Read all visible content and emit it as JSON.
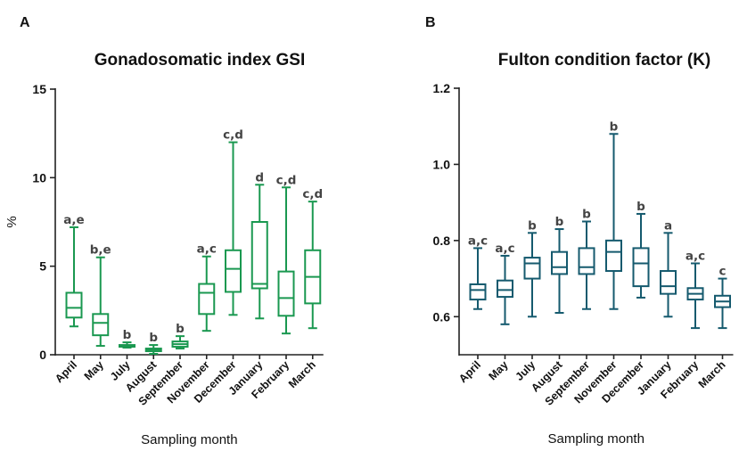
{
  "panels": {
    "left_letter": "A",
    "right_letter": "B"
  },
  "chart_data": [
    {
      "type": "box",
      "title": "Gonadosomatic index GSI",
      "xlabel": "Sampling month",
      "ylabel": "%",
      "ylim": [
        0,
        15
      ],
      "yticks": [
        0,
        5,
        10,
        15
      ],
      "ytick_labels": [
        "0",
        "5",
        "10",
        "15"
      ],
      "color": "#1a9850",
      "categories": [
        "April",
        "May",
        "July",
        "August",
        "September",
        "November",
        "December",
        "January",
        "February",
        "March"
      ],
      "boxes": [
        {
          "min": 1.6,
          "q1": 2.1,
          "median": 2.65,
          "q3": 3.5,
          "max": 7.2,
          "label": "a,e"
        },
        {
          "min": 0.5,
          "q1": 1.1,
          "median": 1.8,
          "q3": 2.3,
          "max": 5.5,
          "label": "b,e"
        },
        {
          "min": 0.4,
          "q1": 0.45,
          "median": 0.5,
          "q3": 0.55,
          "max": 0.7,
          "label": "b"
        },
        {
          "min": 0.05,
          "q1": 0.2,
          "median": 0.3,
          "q3": 0.35,
          "max": 0.55,
          "label": "b"
        },
        {
          "min": 0.35,
          "q1": 0.45,
          "median": 0.6,
          "q3": 0.75,
          "max": 1.05,
          "label": "b"
        },
        {
          "min": 1.35,
          "q1": 2.3,
          "median": 3.5,
          "q3": 4.0,
          "max": 5.55,
          "label": "a,c"
        },
        {
          "min": 2.25,
          "q1": 3.55,
          "median": 4.85,
          "q3": 5.9,
          "max": 12.0,
          "label": "c,d"
        },
        {
          "min": 2.05,
          "q1": 3.75,
          "median": 4.0,
          "q3": 7.5,
          "max": 9.6,
          "label": "d"
        },
        {
          "min": 1.2,
          "q1": 2.2,
          "median": 3.2,
          "q3": 4.7,
          "max": 9.45,
          "label": "c,d"
        },
        {
          "min": 1.5,
          "q1": 2.9,
          "median": 4.4,
          "q3": 5.9,
          "max": 8.65,
          "label": "c,d"
        }
      ]
    },
    {
      "type": "box",
      "title": "Fulton condition factor (K)",
      "xlabel": "Sampling month",
      "ylabel": "",
      "ylim": [
        0.5,
        1.2
      ],
      "yticks": [
        0.6,
        0.8,
        1.0,
        1.2
      ],
      "ytick_labels": [
        "0.6",
        "0.8",
        "1.0",
        "1.2"
      ],
      "color": "#155a6e",
      "categories": [
        "April",
        "May",
        "July",
        "August",
        "September",
        "November",
        "December",
        "January",
        "February",
        "March"
      ],
      "boxes": [
        {
          "min": 0.62,
          "q1": 0.645,
          "median": 0.67,
          "q3": 0.685,
          "max": 0.78,
          "label": "a,c"
        },
        {
          "min": 0.58,
          "q1": 0.652,
          "median": 0.67,
          "q3": 0.695,
          "max": 0.76,
          "label": "a,c"
        },
        {
          "min": 0.6,
          "q1": 0.7,
          "median": 0.74,
          "q3": 0.755,
          "max": 0.82,
          "label": "b"
        },
        {
          "min": 0.61,
          "q1": 0.712,
          "median": 0.73,
          "q3": 0.77,
          "max": 0.83,
          "label": "b"
        },
        {
          "min": 0.62,
          "q1": 0.712,
          "median": 0.73,
          "q3": 0.78,
          "max": 0.85,
          "label": "b"
        },
        {
          "min": 0.62,
          "q1": 0.72,
          "median": 0.77,
          "q3": 0.8,
          "max": 1.08,
          "label": "b"
        },
        {
          "min": 0.65,
          "q1": 0.68,
          "median": 0.74,
          "q3": 0.78,
          "max": 0.87,
          "label": "b"
        },
        {
          "min": 0.6,
          "q1": 0.66,
          "median": 0.68,
          "q3": 0.72,
          "max": 0.82,
          "label": "a"
        },
        {
          "min": 0.57,
          "q1": 0.645,
          "median": 0.66,
          "q3": 0.675,
          "max": 0.74,
          "label": "a,c"
        },
        {
          "min": 0.57,
          "q1": 0.625,
          "median": 0.64,
          "q3": 0.655,
          "max": 0.7,
          "label": "c"
        }
      ]
    }
  ]
}
